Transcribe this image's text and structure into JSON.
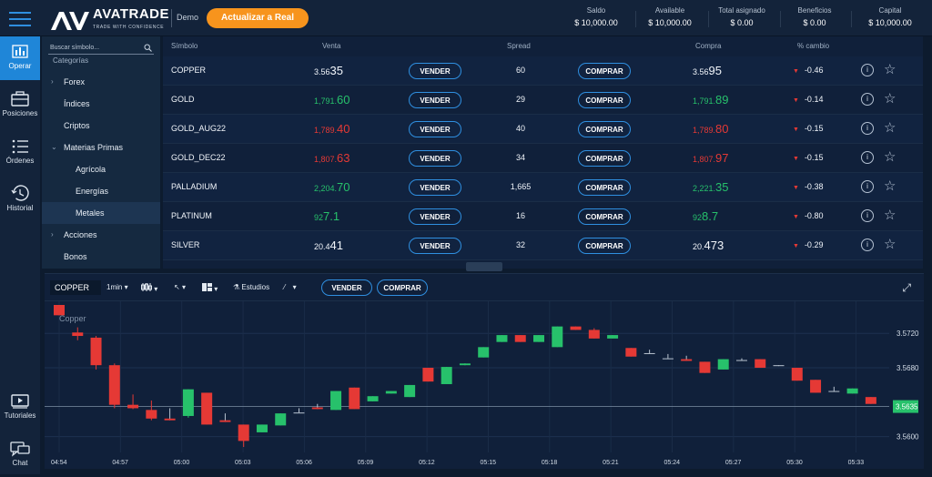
{
  "brand": {
    "name": "AVATRADE",
    "tagline": "TRADE WITH CONFIDENCE",
    "accent": "#f7941d",
    "primary": "#2f8fe0"
  },
  "header": {
    "mode": "Demo",
    "upgrade_label": "Actualizar a Real",
    "stats": [
      {
        "label": "Saldo",
        "value": "$ 10,000.00"
      },
      {
        "label": "Available",
        "value": "$ 10,000.00"
      },
      {
        "label": "Total asignado",
        "value": "$ 0.00"
      },
      {
        "label": "Beneficios",
        "value": "$ 0.00"
      },
      {
        "label": "Capital",
        "value": "$ 10,000.00"
      }
    ]
  },
  "nav": {
    "items": [
      {
        "label": "Operar",
        "icon": "chart-bar-icon",
        "active": true
      },
      {
        "label": "Posiciones",
        "icon": "briefcase-icon"
      },
      {
        "label": "Órdenes",
        "icon": "list-icon"
      },
      {
        "label": "Historial",
        "icon": "history-icon"
      },
      {
        "label": "Tutoriales",
        "icon": "video-icon"
      },
      {
        "label": "Chat",
        "icon": "chat-icon"
      }
    ]
  },
  "categories": {
    "search_placeholder": "Buscar símbolo...",
    "heading": "Categorías",
    "items": [
      {
        "label": "Forex",
        "level": 0,
        "chevron": "›"
      },
      {
        "label": "Índices",
        "level": 0
      },
      {
        "label": "Criptos",
        "level": 0
      },
      {
        "label": "Materias Primas",
        "level": 0,
        "chevron": "⌄"
      },
      {
        "label": "Agrícola",
        "level": 1
      },
      {
        "label": "Energías",
        "level": 1
      },
      {
        "label": "Metales",
        "level": 1,
        "selected": true
      },
      {
        "label": "Acciones",
        "level": 0,
        "chevron": "›"
      },
      {
        "label": "Bonos",
        "level": 0
      }
    ]
  },
  "table": {
    "headers": {
      "symbol": "Símbolo",
      "sell": "Venta",
      "spread": "Spread",
      "buy": "Compra",
      "change": "% cambio"
    },
    "sell_label": "VENDER",
    "buy_label": "COMPRAR",
    "rows": [
      {
        "symbol": "COPPER",
        "sell_pre": "3.56",
        "sell_big": "35",
        "sell_color": "white",
        "spread": "60",
        "buy_pre": "3.56",
        "buy_big": "95",
        "buy_color": "white",
        "change": "-0.46"
      },
      {
        "symbol": "GOLD",
        "sell_pre": "1,791.",
        "sell_big": "60",
        "sell_color": "green",
        "spread": "29",
        "buy_pre": "1,791.",
        "buy_big": "89",
        "buy_color": "green",
        "change": "-0.14"
      },
      {
        "symbol": "GOLD_AUG22",
        "sell_pre": "1,789.",
        "sell_big": "40",
        "sell_color": "red",
        "spread": "40",
        "buy_pre": "1,789.",
        "buy_big": "80",
        "buy_color": "red",
        "change": "-0.15"
      },
      {
        "symbol": "GOLD_DEC22",
        "sell_pre": "1,807.",
        "sell_big": "63",
        "sell_color": "red",
        "spread": "34",
        "buy_pre": "1,807.",
        "buy_big": "97",
        "buy_color": "red",
        "change": "-0.15"
      },
      {
        "symbol": "PALLADIUM",
        "sell_pre": "2,204.",
        "sell_big": "70",
        "sell_color": "green",
        "spread": "1,665",
        "buy_pre": "2,221.",
        "buy_big": "35",
        "buy_color": "green",
        "change": "-0.38"
      },
      {
        "symbol": "PLATINUM",
        "sell_pre": "92",
        "sell_big": "7.1",
        "sell_color": "green",
        "spread": "16",
        "buy_pre": "92",
        "buy_big": "8.7",
        "buy_color": "green",
        "change": "-0.80"
      },
      {
        "symbol": "SILVER",
        "sell_pre": "20.4",
        "sell_big": "41",
        "sell_color": "white",
        "spread": "32",
        "buy_pre": "20.",
        "buy_big": "473",
        "buy_color": "white",
        "change": "-0.29"
      }
    ]
  },
  "chart_toolbar": {
    "symbol": "COPPER",
    "interval": "1min",
    "studies_label": "Estudios",
    "sell_label": "VENDER",
    "buy_label": "COMPRAR"
  },
  "chart_data": {
    "type": "candlestick",
    "title": "Copper",
    "up_color": "#27c16b",
    "down_color": "#e53935",
    "x_ticks": [
      "04:54",
      "04:57",
      "05:00",
      "05:03",
      "05:06",
      "05:09",
      "05:12",
      "05:15",
      "05:18",
      "05:21",
      "05:24",
      "05:27",
      "05:30",
      "05:33"
    ],
    "y_ticks": [
      3.572,
      3.568,
      3.56
    ],
    "y_tick_labels": [
      "3.5720",
      "3.5680",
      "3.5600"
    ],
    "ylim": [
      3.5588,
      3.5753
    ],
    "last_price": "3.5635",
    "last_value": 3.5635,
    "candles": [
      {
        "o": 3.5753,
        "c": 3.5741,
        "h": 3.5753,
        "l": 3.5741
      },
      {
        "o": 3.5721,
        "c": 3.5717,
        "h": 3.5727,
        "l": 3.5712
      },
      {
        "o": 3.5715,
        "c": 3.5683,
        "h": 3.5717,
        "l": 3.5678
      },
      {
        "o": 3.5683,
        "c": 3.5637,
        "h": 3.5685,
        "l": 3.5633
      },
      {
        "o": 3.5637,
        "c": 3.5633,
        "h": 3.5649,
        "l": 3.5632
      },
      {
        "o": 3.5631,
        "c": 3.5621,
        "h": 3.5642,
        "l": 3.5619
      },
      {
        "o": 3.5621,
        "c": 3.5619,
        "h": 3.5633,
        "l": 3.5619
      },
      {
        "o": 3.5624,
        "c": 3.5655,
        "h": 3.5655,
        "l": 3.5622
      },
      {
        "o": 3.5651,
        "c": 3.5614,
        "h": 3.5651,
        "l": 3.5614
      },
      {
        "o": 3.5619,
        "c": 3.5617,
        "h": 3.5627,
        "l": 3.5617
      },
      {
        "o": 3.5614,
        "c": 3.5595,
        "h": 3.5614,
        "l": 3.5588
      },
      {
        "o": 3.5605,
        "c": 3.5614,
        "h": 3.5614,
        "l": 3.5605
      },
      {
        "o": 3.5613,
        "c": 3.5627,
        "h": 3.5627,
        "l": 3.5613
      },
      {
        "o": 3.5628,
        "c": 3.5628,
        "h": 3.5633,
        "l": 3.5628
      },
      {
        "o": 3.5634,
        "c": 3.5632,
        "h": 3.5638,
        "l": 3.5632
      },
      {
        "o": 3.5631,
        "c": 3.5653,
        "h": 3.5653,
        "l": 3.5631
      },
      {
        "o": 3.5657,
        "c": 3.5632,
        "h": 3.5657,
        "l": 3.5632
      },
      {
        "o": 3.5641,
        "c": 3.5647,
        "h": 3.5647,
        "l": 3.5641
      },
      {
        "o": 3.565,
        "c": 3.5653,
        "h": 3.5653,
        "l": 3.565
      },
      {
        "o": 3.5646,
        "c": 3.566,
        "h": 3.566,
        "l": 3.5646
      },
      {
        "o": 3.568,
        "c": 3.5664,
        "h": 3.568,
        "l": 3.5664
      },
      {
        "o": 3.5661,
        "c": 3.5681,
        "h": 3.5681,
        "l": 3.5661
      },
      {
        "o": 3.5683,
        "c": 3.5685,
        "h": 3.5685,
        "l": 3.5683
      },
      {
        "o": 3.5692,
        "c": 3.5704,
        "h": 3.5704,
        "l": 3.5692
      },
      {
        "o": 3.571,
        "c": 3.5718,
        "h": 3.5718,
        "l": 3.571
      },
      {
        "o": 3.5718,
        "c": 3.571,
        "h": 3.5718,
        "l": 3.571
      },
      {
        "o": 3.571,
        "c": 3.5718,
        "h": 3.5718,
        "l": 3.571
      },
      {
        "o": 3.5704,
        "c": 3.5728,
        "h": 3.5728,
        "l": 3.5704
      },
      {
        "o": 3.5728,
        "c": 3.5724,
        "h": 3.5728,
        "l": 3.5724
      },
      {
        "o": 3.5724,
        "c": 3.5714,
        "h": 3.5726,
        "l": 3.5714
      },
      {
        "o": 3.5714,
        "c": 3.5718,
        "h": 3.5718,
        "l": 3.5714
      },
      {
        "o": 3.5703,
        "c": 3.5693,
        "h": 3.5703,
        "l": 3.5693
      },
      {
        "o": 3.5697,
        "c": 3.5697,
        "h": 3.5701,
        "l": 3.5697
      },
      {
        "o": 3.5691,
        "c": 3.5691,
        "h": 3.5696,
        "l": 3.5691
      },
      {
        "o": 3.569,
        "c": 3.5688,
        "h": 3.5694,
        "l": 3.5688
      },
      {
        "o": 3.5687,
        "c": 3.5674,
        "h": 3.5687,
        "l": 3.5674
      },
      {
        "o": 3.5678,
        "c": 3.569,
        "h": 3.569,
        "l": 3.5678
      },
      {
        "o": 3.5689,
        "c": 3.5689,
        "h": 3.5691,
        "l": 3.5689
      },
      {
        "o": 3.569,
        "c": 3.568,
        "h": 3.569,
        "l": 3.568
      },
      {
        "o": 3.5683,
        "c": 3.5682,
        "h": 3.5683,
        "l": 3.5682
      },
      {
        "o": 3.568,
        "c": 3.5665,
        "h": 3.568,
        "l": 3.5665
      },
      {
        "o": 3.5666,
        "c": 3.5651,
        "h": 3.5666,
        "l": 3.5651
      },
      {
        "o": 3.5653,
        "c": 3.5653,
        "h": 3.5658,
        "l": 3.5653
      },
      {
        "o": 3.565,
        "c": 3.5656,
        "h": 3.5656,
        "l": 3.565
      },
      {
        "o": 3.5646,
        "c": 3.5638,
        "h": 3.5646,
        "l": 3.5638
      }
    ]
  }
}
